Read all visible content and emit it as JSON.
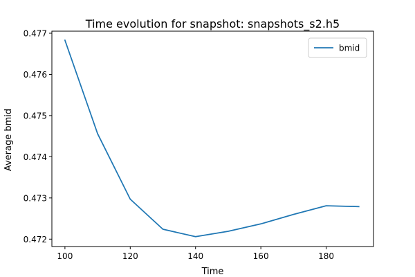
{
  "chart_data": {
    "type": "line",
    "title": "Time evolution for snapshot: snapshots_s2.h5",
    "xlabel": "Time",
    "ylabel": "Average bmid",
    "xlim": [
      96,
      194.5
    ],
    "ylim": [
      0.47182,
      0.47705
    ],
    "xticks": [
      100,
      120,
      140,
      160,
      180
    ],
    "xtick_labels": [
      "100",
      "120",
      "140",
      "160",
      "180"
    ],
    "yticks": [
      0.472,
      0.473,
      0.474,
      0.475,
      0.476,
      0.477
    ],
    "ytick_labels": [
      "0.472",
      "0.473",
      "0.474",
      "0.475",
      "0.476",
      "0.477"
    ],
    "grid": false,
    "legend_position": "top-right",
    "series": [
      {
        "name": "bmid",
        "color": "#1f77b4",
        "x": [
          100,
          110,
          120,
          130,
          140,
          150,
          160,
          170,
          180,
          190
        ],
        "y": [
          0.47683,
          0.47456,
          0.47297,
          0.47224,
          0.47206,
          0.47219,
          0.47237,
          0.4726,
          0.47281,
          0.47279
        ]
      }
    ]
  }
}
